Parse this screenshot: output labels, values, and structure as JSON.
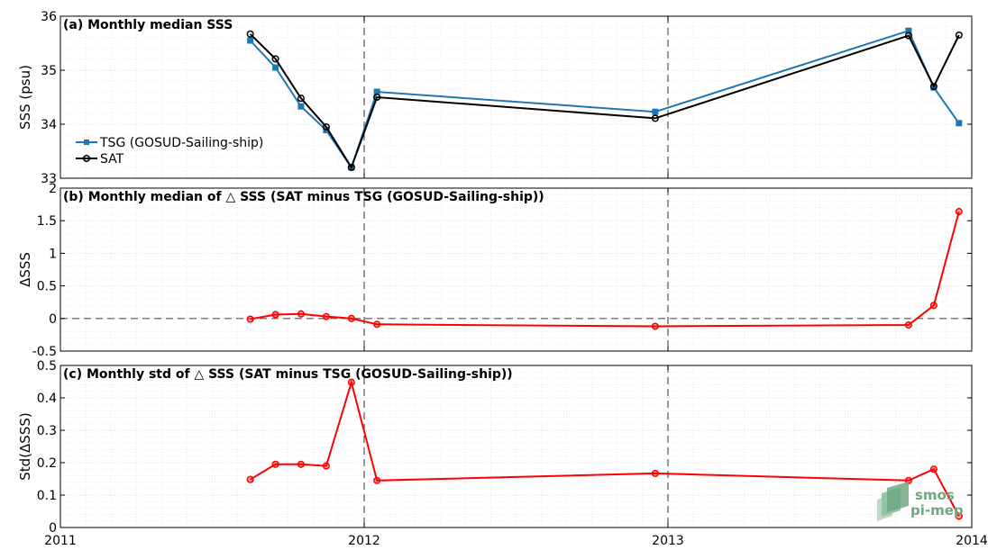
{
  "colors": {
    "tsg": "#1f77b4",
    "sat": "#000000",
    "delta": "#ff0000",
    "grid": "#e3e3e3",
    "dashed": "#555555",
    "logo": "#6fa882"
  },
  "logo": {
    "line1": "smos",
    "line2": "pi-mep"
  },
  "chart_data": [
    {
      "type": "line",
      "title": "(a) Monthly median SSS",
      "xlabel": "",
      "ylabel": "SSS (psu)",
      "xlim": [
        2011,
        2014
      ],
      "ylim": [
        33,
        36
      ],
      "yticks": [
        33,
        34,
        35,
        36
      ],
      "vlines": [
        2012,
        2013
      ],
      "grid": true,
      "legend": "left",
      "x": [
        2011.625,
        2011.708,
        2011.792,
        2011.875,
        2011.958,
        2012.042,
        2012.958,
        2013.792,
        2013.875,
        2013.958
      ],
      "series": [
        {
          "name": "TSG (GOSUD-Sailing-ship)",
          "color": "#1f77b4",
          "marker": "square",
          "values": [
            35.55,
            35.05,
            34.33,
            33.89,
            33.2,
            34.6,
            34.23,
            35.73,
            34.68,
            34.02
          ]
        },
        {
          "name": "SAT",
          "color": "#000000",
          "marker": "circle",
          "values": [
            35.67,
            35.21,
            34.48,
            33.95,
            33.2,
            34.5,
            34.11,
            35.64,
            34.7,
            35.65
          ]
        }
      ]
    },
    {
      "type": "line",
      "title": "(b) Monthly median of △ SSS (SAT minus TSG (GOSUD-Sailing-ship))",
      "xlabel": "",
      "ylabel": "ΔSSS",
      "xlim": [
        2011,
        2014
      ],
      "ylim": [
        -0.5,
        2
      ],
      "yticks": [
        -0.5,
        0,
        0.5,
        1,
        1.5,
        2
      ],
      "ytick_labels": [
        "-0.5",
        "0",
        "0.5",
        "1",
        "1.5",
        "2"
      ],
      "vlines": [
        2012,
        2013
      ],
      "hline": 0,
      "grid": true,
      "x": [
        2011.625,
        2011.708,
        2011.792,
        2011.875,
        2011.958,
        2012.042,
        2012.958,
        2013.792,
        2013.875,
        2013.958
      ],
      "series": [
        {
          "name": "",
          "color": "#ff0000",
          "marker": "circle",
          "values": [
            -0.01,
            0.06,
            0.07,
            0.03,
            0.0,
            -0.09,
            -0.12,
            -0.1,
            0.2,
            1.64
          ]
        }
      ]
    },
    {
      "type": "line",
      "title": "(c) Monthly std of △ SSS (SAT minus TSG (GOSUD-Sailing-ship))",
      "xlabel": "",
      "ylabel": "Std(ΔSSS)",
      "xlim": [
        2011,
        2014
      ],
      "ylim": [
        0,
        0.5
      ],
      "yticks": [
        0,
        0.1,
        0.2,
        0.3,
        0.4,
        0.5
      ],
      "ytick_labels": [
        "0",
        "0.1",
        "0.2",
        "0.3",
        "0.4",
        "0.5"
      ],
      "xticks": [
        2011,
        2012,
        2013,
        2014
      ],
      "xtick_labels": [
        "2011",
        "2012",
        "2013",
        "2014"
      ],
      "vlines": [
        2012,
        2013
      ],
      "grid": true,
      "x": [
        2011.625,
        2011.708,
        2011.792,
        2011.875,
        2011.958,
        2012.042,
        2012.958,
        2013.792,
        2013.875,
        2013.958
      ],
      "series": [
        {
          "name": "",
          "color": "#ff0000",
          "marker": "circle",
          "values": [
            0.148,
            0.195,
            0.195,
            0.19,
            0.448,
            0.145,
            0.167,
            0.145,
            0.18,
            0.035
          ]
        }
      ]
    }
  ]
}
